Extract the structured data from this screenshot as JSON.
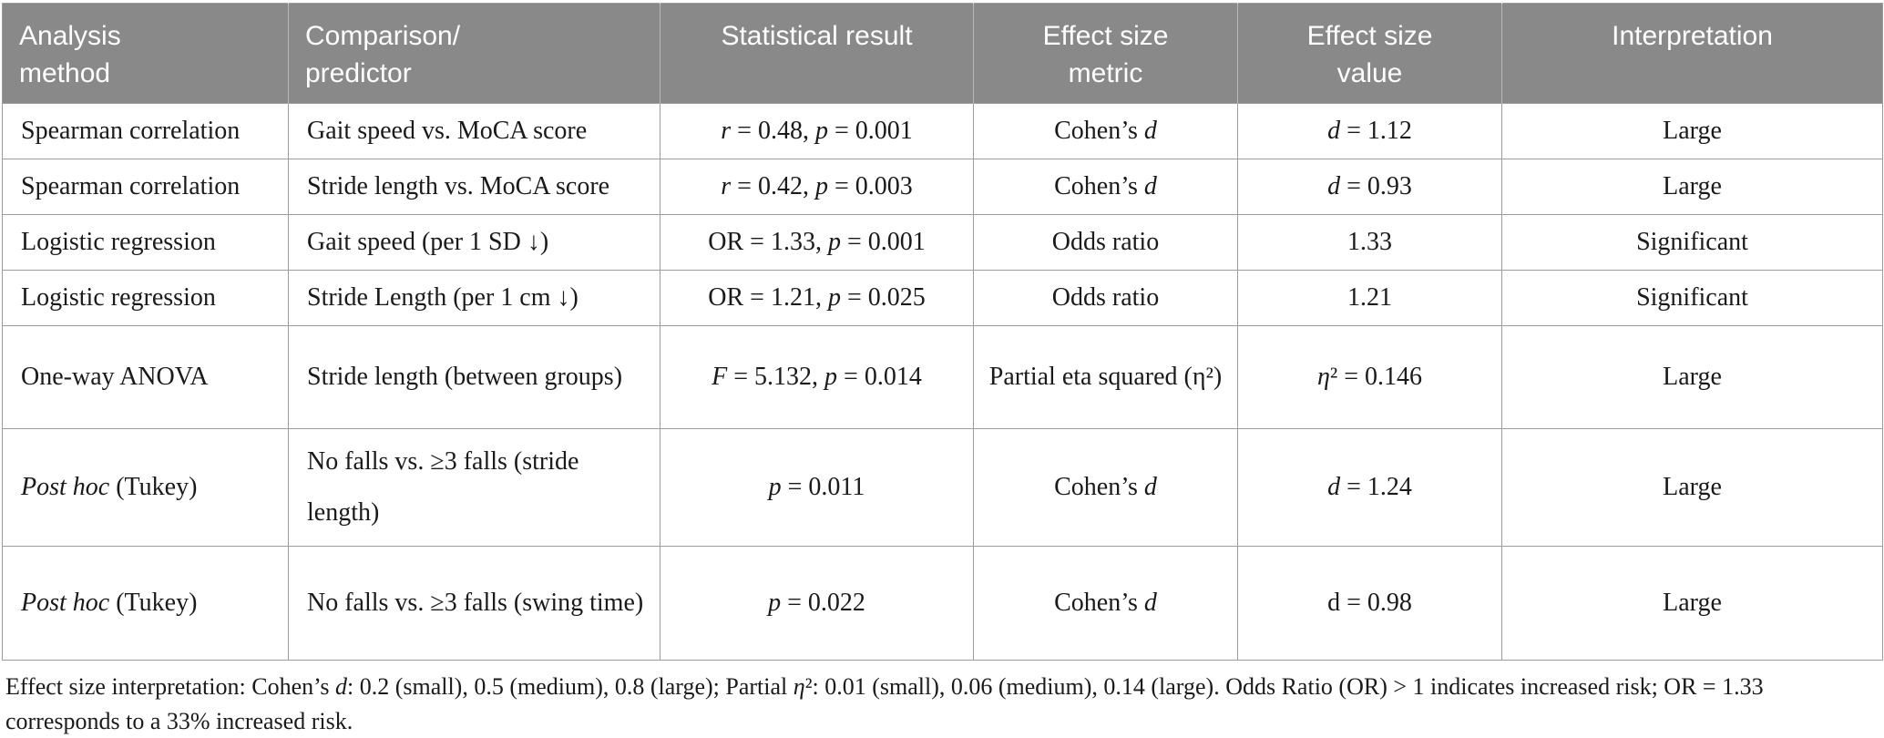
{
  "colors": {
    "header_bg": "#898989",
    "header_text": "#ffffff",
    "border": "#9c9c9c",
    "body_text": "#1a1a1a"
  },
  "table": {
    "headers": [
      "Analysis\nmethod",
      "Comparison/\npredictor",
      "Statistical result",
      "Effect size\nmetric",
      "Effect size\nvalue",
      "Interpretation"
    ],
    "rows": [
      [
        [
          "Spearman correlation"
        ],
        [
          "Gait speed vs. MoCA score"
        ],
        [
          {
            "t": "r",
            "i": true
          },
          " = 0.48, ",
          {
            "t": "p",
            "i": true
          },
          " = 0.001"
        ],
        [
          "Cohen’s ",
          {
            "t": "d",
            "i": true
          }
        ],
        [
          {
            "t": "d",
            "i": true
          },
          " = 1.12"
        ],
        [
          "Large"
        ]
      ],
      [
        [
          "Spearman correlation"
        ],
        [
          "Stride length vs. MoCA score"
        ],
        [
          {
            "t": "r",
            "i": true
          },
          " = 0.42, ",
          {
            "t": "p",
            "i": true
          },
          " = 0.003"
        ],
        [
          "Cohen’s ",
          {
            "t": "d",
            "i": true
          }
        ],
        [
          {
            "t": "d",
            "i": true
          },
          " = 0.93"
        ],
        [
          "Large"
        ]
      ],
      [
        [
          "Logistic regression"
        ],
        [
          "Gait speed (per 1 SD ↓)"
        ],
        [
          "OR = 1.33, ",
          {
            "t": "p",
            "i": true
          },
          " = 0.001"
        ],
        [
          "Odds ratio"
        ],
        [
          "1.33"
        ],
        [
          "Significant"
        ]
      ],
      [
        [
          "Logistic regression"
        ],
        [
          "Stride Length (per 1 cm ↓)"
        ],
        [
          "OR = 1.21, ",
          {
            "t": "p",
            "i": true
          },
          " = 0.025"
        ],
        [
          "Odds ratio"
        ],
        [
          "1.21"
        ],
        [
          "Significant"
        ]
      ],
      [
        [
          "One-way ANOVA"
        ],
        [
          "Stride length (between groups)"
        ],
        [
          {
            "t": "F",
            "i": true
          },
          " = 5.132, ",
          {
            "t": "p",
            "i": true
          },
          " = 0.014"
        ],
        [
          "Partial eta squared (η²)"
        ],
        [
          {
            "t": "η",
            "i": true
          },
          "² = 0.146"
        ],
        [
          "Large"
        ]
      ],
      [
        [
          {
            "t": "Post hoc",
            "i": true
          },
          " (Tukey)"
        ],
        [
          "No falls vs. ≥3 falls (stride length)"
        ],
        [
          {
            "t": "p",
            "i": true
          },
          " = 0.011"
        ],
        [
          "Cohen’s ",
          {
            "t": "d",
            "i": true
          }
        ],
        [
          {
            "t": "d",
            "i": true
          },
          " = 1.24"
        ],
        [
          "Large"
        ]
      ],
      [
        [
          {
            "t": "Post hoc",
            "i": true
          },
          " (Tukey)"
        ],
        [
          "No falls vs. ≥3 falls (swing time)"
        ],
        [
          {
            "t": "p",
            "i": true
          },
          " = 0.022"
        ],
        [
          "Cohen’s ",
          {
            "t": "d",
            "i": true
          }
        ],
        [
          "d = 0.98"
        ],
        [
          "Large"
        ]
      ]
    ],
    "footnote": [
      "Effect size interpretation: Cohen’s ",
      {
        "t": "d",
        "i": true
      },
      ": 0.2 (small), 0.5 (medium), 0.8 (large); Partial ",
      {
        "t": "η",
        "i": true
      },
      "²: 0.01 (small), 0.06 (medium), 0.14 (large). Odds Ratio (OR) > 1 indicates increased risk; OR = 1.33 corresponds to a 33% increased risk."
    ]
  }
}
